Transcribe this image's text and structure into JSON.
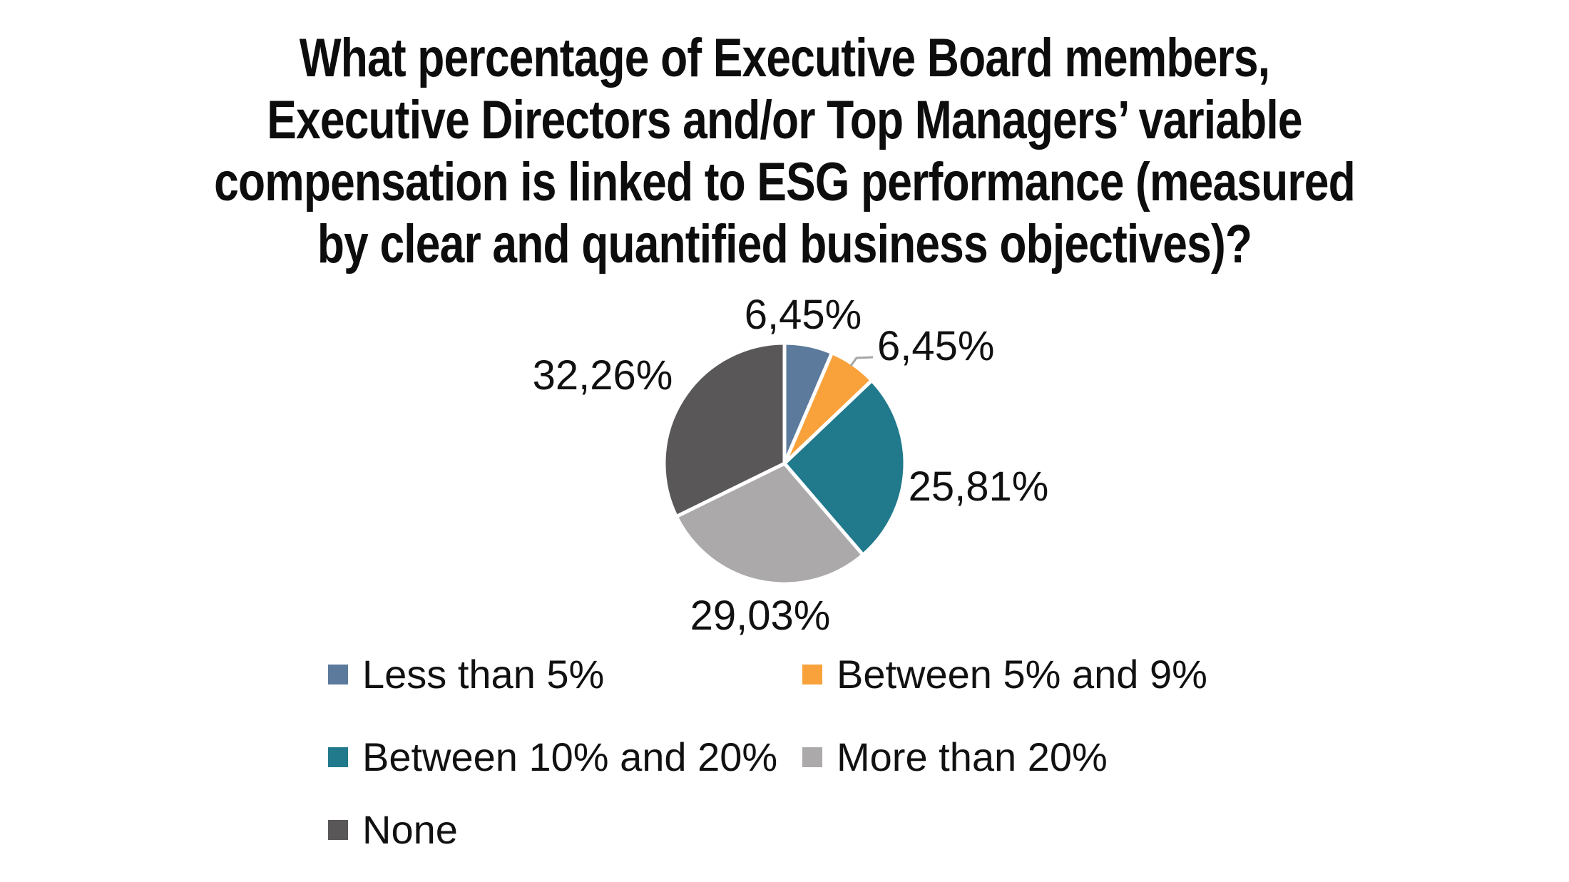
{
  "title": {
    "lines": [
      "What percentage of Executive Board members,",
      "Executive Directors and/or Top Managers’ variable",
      "compensation is linked to ESG performance (measured",
      "by clear and quantified business objectives)?"
    ]
  },
  "chart_data": {
    "type": "pie",
    "title": "What percentage of Executive Board members, Executive Directors and/or Top Managers’ variable compensation is linked to ESG performance (measured by clear and quantified business objectives)?",
    "unit": "%",
    "decimal_separator": ",",
    "direction": "clockwise",
    "start_angle_deg": 0,
    "legend_position": "bottom",
    "slices": [
      {
        "label": "Less than 5%",
        "value": 6.45,
        "display": "6,45%",
        "color": "#5C7A9C"
      },
      {
        "label": "Between 5% and 9%",
        "value": 6.45,
        "display": "6,45%",
        "color": "#F9A23C"
      },
      {
        "label": "Between 10% and 20%",
        "value": 25.81,
        "display": "25,81%",
        "color": "#21798C"
      },
      {
        "label": "More than 20%",
        "value": 29.03,
        "display": "29,03%",
        "color": "#ABA9A9"
      },
      {
        "label": "None",
        "value": 32.26,
        "display": "32,26%",
        "color": "#595757"
      }
    ],
    "colors": {
      "slice_border": "#FFFFFF",
      "leader_line": "#A6A6A6",
      "text": "#111111",
      "background": "#FFFFFF"
    }
  }
}
